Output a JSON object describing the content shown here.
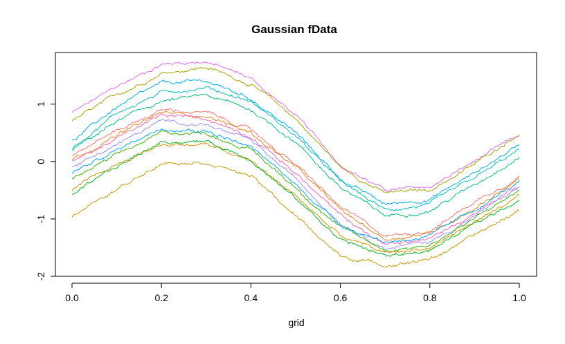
{
  "chart_data": {
    "type": "line",
    "title": "Gaussian fData",
    "xlabel": "grid",
    "ylabel": "",
    "xlim": [
      0.0,
      1.0
    ],
    "ylim": [
      -2,
      1.9
    ],
    "x_ticks": [
      0.0,
      0.2,
      0.4,
      0.6,
      0.8,
      1.0
    ],
    "x_tick_labels": [
      "0.0",
      "0.2",
      "0.4",
      "0.6",
      "0.8",
      "1.0"
    ],
    "y_ticks": [
      -2,
      -1,
      0,
      1
    ],
    "y_tick_labels": [
      "-2",
      "-1",
      "0",
      "1"
    ],
    "grid": false,
    "legend": "none",
    "x": [
      0.0,
      0.1,
      0.2,
      0.3,
      0.4,
      0.5,
      0.6,
      0.7,
      0.8,
      0.9,
      1.0
    ],
    "series": [
      {
        "color": "#E76BF3",
        "values": [
          0.85,
          1.3,
          1.7,
          1.75,
          1.45,
          0.8,
          -0.05,
          -0.5,
          -0.45,
          0.0,
          0.45
        ]
      },
      {
        "color": "#A3A500",
        "values": [
          0.7,
          1.15,
          1.55,
          1.65,
          1.35,
          0.75,
          -0.1,
          -0.55,
          -0.5,
          -0.05,
          0.5
        ]
      },
      {
        "color": "#00B0F6",
        "values": [
          0.35,
          0.95,
          1.35,
          1.4,
          1.1,
          0.5,
          -0.3,
          -0.75,
          -0.65,
          -0.2,
          0.3
        ]
      },
      {
        "color": "#00BFC4",
        "values": [
          0.25,
          0.85,
          1.2,
          1.3,
          1.05,
          0.45,
          -0.35,
          -0.85,
          -0.75,
          -0.3,
          0.2
        ]
      },
      {
        "color": "#00BF7D",
        "values": [
          0.2,
          0.7,
          1.05,
          1.15,
          0.9,
          0.35,
          -0.45,
          -0.95,
          -0.85,
          -0.4,
          0.1
        ]
      },
      {
        "color": "#F8766D",
        "values": [
          0.1,
          0.55,
          0.9,
          0.85,
          0.55,
          -0.05,
          -0.8,
          -1.3,
          -1.2,
          -0.7,
          -0.25
        ]
      },
      {
        "color": "#E7861A",
        "values": [
          0.05,
          0.45,
          0.85,
          0.8,
          0.5,
          -0.1,
          -0.85,
          -1.35,
          -1.25,
          -0.8,
          -0.3
        ]
      },
      {
        "color": "#FF62BC",
        "values": [
          0.0,
          0.4,
          0.8,
          0.75,
          0.45,
          -0.2,
          -0.95,
          -1.45,
          -1.35,
          -0.9,
          -0.4
        ]
      },
      {
        "color": "#9590FF",
        "values": [
          -0.1,
          0.3,
          0.7,
          0.65,
          0.35,
          -0.3,
          -1.05,
          -1.5,
          -1.4,
          -0.95,
          -0.45
        ]
      },
      {
        "color": "#39B600",
        "values": [
          -0.3,
          0.1,
          0.5,
          0.5,
          0.2,
          -0.45,
          -1.15,
          -1.55,
          -1.45,
          -1.0,
          -0.5
        ]
      },
      {
        "color": "#00A5FF",
        "values": [
          -0.2,
          0.2,
          0.6,
          0.55,
          0.25,
          -0.4,
          -1.1,
          -1.4,
          -1.3,
          -0.85,
          -0.35
        ]
      },
      {
        "color": "#D89000",
        "values": [
          -0.5,
          -0.05,
          0.3,
          0.3,
          0.0,
          -0.6,
          -1.3,
          -1.6,
          -1.5,
          -1.05,
          -0.6
        ]
      },
      {
        "color": "#00B81F",
        "values": [
          -0.6,
          -0.1,
          0.35,
          0.35,
          0.05,
          -0.65,
          -1.35,
          -1.65,
          -1.55,
          -1.1,
          -0.65
        ]
      },
      {
        "color": "#C99800",
        "values": [
          -0.95,
          -0.5,
          0.0,
          0.0,
          -0.25,
          -0.95,
          -1.65,
          -1.8,
          -1.7,
          -1.3,
          -0.85
        ]
      }
    ]
  }
}
